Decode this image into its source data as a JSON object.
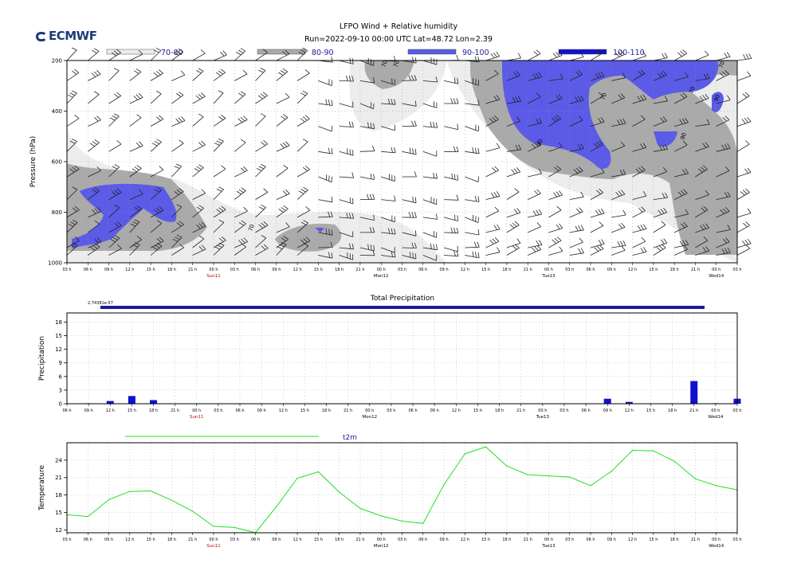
{
  "logo_text": "ECMWF",
  "title": "LFPO Wind + Relative humidity",
  "subtitle": "Run=2022-09-10 00:00 UTC Lat=48.72 Lon=2.39",
  "colors": {
    "rh_70_80": "#ececec",
    "rh_80_90": "#aaaaaa",
    "rh_90_100": "#5b5be8",
    "rh_100_110": "#1010d0",
    "precip_bar": "#1010d0",
    "precip_legend": "#1c1c9a",
    "t2m_line": "#20e020",
    "sunday_label": "#cc0000"
  },
  "rh_legend": [
    {
      "label": "70-80",
      "color": "#ececec"
    },
    {
      "label": "80-90",
      "color": "#aaaaaa"
    },
    {
      "label": "90-100",
      "color": "#5b5be8"
    },
    {
      "label": "100-110",
      "color": "#1010d0"
    }
  ],
  "time_axis": {
    "hour_ticks": [
      "03 h",
      "06 h",
      "09 h",
      "12 h",
      "15 h",
      "18 h",
      "21 h",
      "00 h",
      "03 h",
      "06 h",
      "09 h",
      "12 h",
      "15 h",
      "18 h",
      "21 h",
      "00 h",
      "03 h",
      "06 h",
      "09 h",
      "12 h",
      "15 h",
      "18 h",
      "21 h",
      "00 h",
      "03 h",
      "06 h",
      "09 h",
      "12 h",
      "15 h",
      "18 h",
      "21 h",
      "00 h",
      "03 h"
    ],
    "day_labels": [
      {
        "label": "Sun11",
        "tick_index": 7,
        "red": true
      },
      {
        "label": "Mon12",
        "tick_index": 15,
        "red": false
      },
      {
        "label": "Tue13",
        "tick_index": 23,
        "red": false
      },
      {
        "label": "Wed14",
        "tick_index": 31,
        "red": false
      }
    ]
  },
  "chart_data": [
    {
      "type": "heatmap",
      "title": "LFPO Wind + Relative humidity",
      "ylabel": "Pressure (hPa)",
      "y_ticks": [
        200,
        400,
        600,
        800,
        1000
      ],
      "ylim": [
        1000,
        200
      ],
      "contour_labels": [
        "70",
        "70",
        "70",
        "70",
        "70",
        "70",
        "90",
        "90",
        "90"
      ],
      "grid": true
    },
    {
      "type": "bar",
      "title": "Total Precipitation",
      "ylabel": "Precipitation",
      "legend_label": "2.74381e-57",
      "ylim": [
        0,
        20
      ],
      "y_ticks": [
        0,
        3,
        6,
        9,
        12,
        15,
        18
      ],
      "x_ticks": [
        "06 h",
        "09 h",
        "12 h",
        "15 h",
        "18 h",
        "21 h",
        "00 h",
        "03 h",
        "06 h",
        "09 h",
        "12 h",
        "15 h",
        "18 h",
        "21 h",
        "00 h",
        "03 h",
        "06 h",
        "09 h",
        "12 h",
        "15 h",
        "18 h",
        "21 h",
        "00 h",
        "03 h",
        "06 h",
        "09 h",
        "12 h",
        "15 h",
        "18 h",
        "21 h",
        "00 h",
        "03 h"
      ],
      "x_day_labels": [
        {
          "label": "Sun11",
          "tick_index": 6,
          "red": true
        },
        {
          "label": "Mon12",
          "tick_index": 14,
          "red": false
        },
        {
          "label": "Tue13",
          "tick_index": 22,
          "red": false
        },
        {
          "label": "Wed14",
          "tick_index": 30,
          "red": false
        }
      ],
      "values": [
        0,
        0.1,
        0.6,
        1.7,
        0.8,
        0,
        0,
        0,
        0,
        0,
        0,
        0,
        0,
        0,
        0,
        0,
        0,
        0,
        0,
        0,
        0,
        0,
        0,
        0,
        0,
        1.1,
        0.4,
        0,
        0,
        5.0,
        0.1,
        1.1
      ],
      "grid": true
    },
    {
      "type": "line",
      "title": "t2m",
      "ylabel": "Temperature",
      "ylim": [
        11.5,
        27
      ],
      "y_ticks": [
        12,
        15,
        18,
        21,
        24
      ],
      "series": [
        {
          "name": "t2m",
          "values": [
            14.6,
            14.3,
            17.2,
            18.6,
            18.7,
            17.1,
            15.2,
            12.6,
            12.4,
            11.5,
            16.0,
            20.9,
            22.0,
            18.5,
            15.7,
            14.4,
            13.5,
            13.1,
            19.8,
            25.1,
            26.3,
            23.0,
            21.5,
            21.3,
            21.1,
            19.6,
            22.1,
            25.7,
            25.6,
            23.8,
            20.8,
            19.6,
            18.9
          ]
        }
      ],
      "grid": true
    }
  ]
}
